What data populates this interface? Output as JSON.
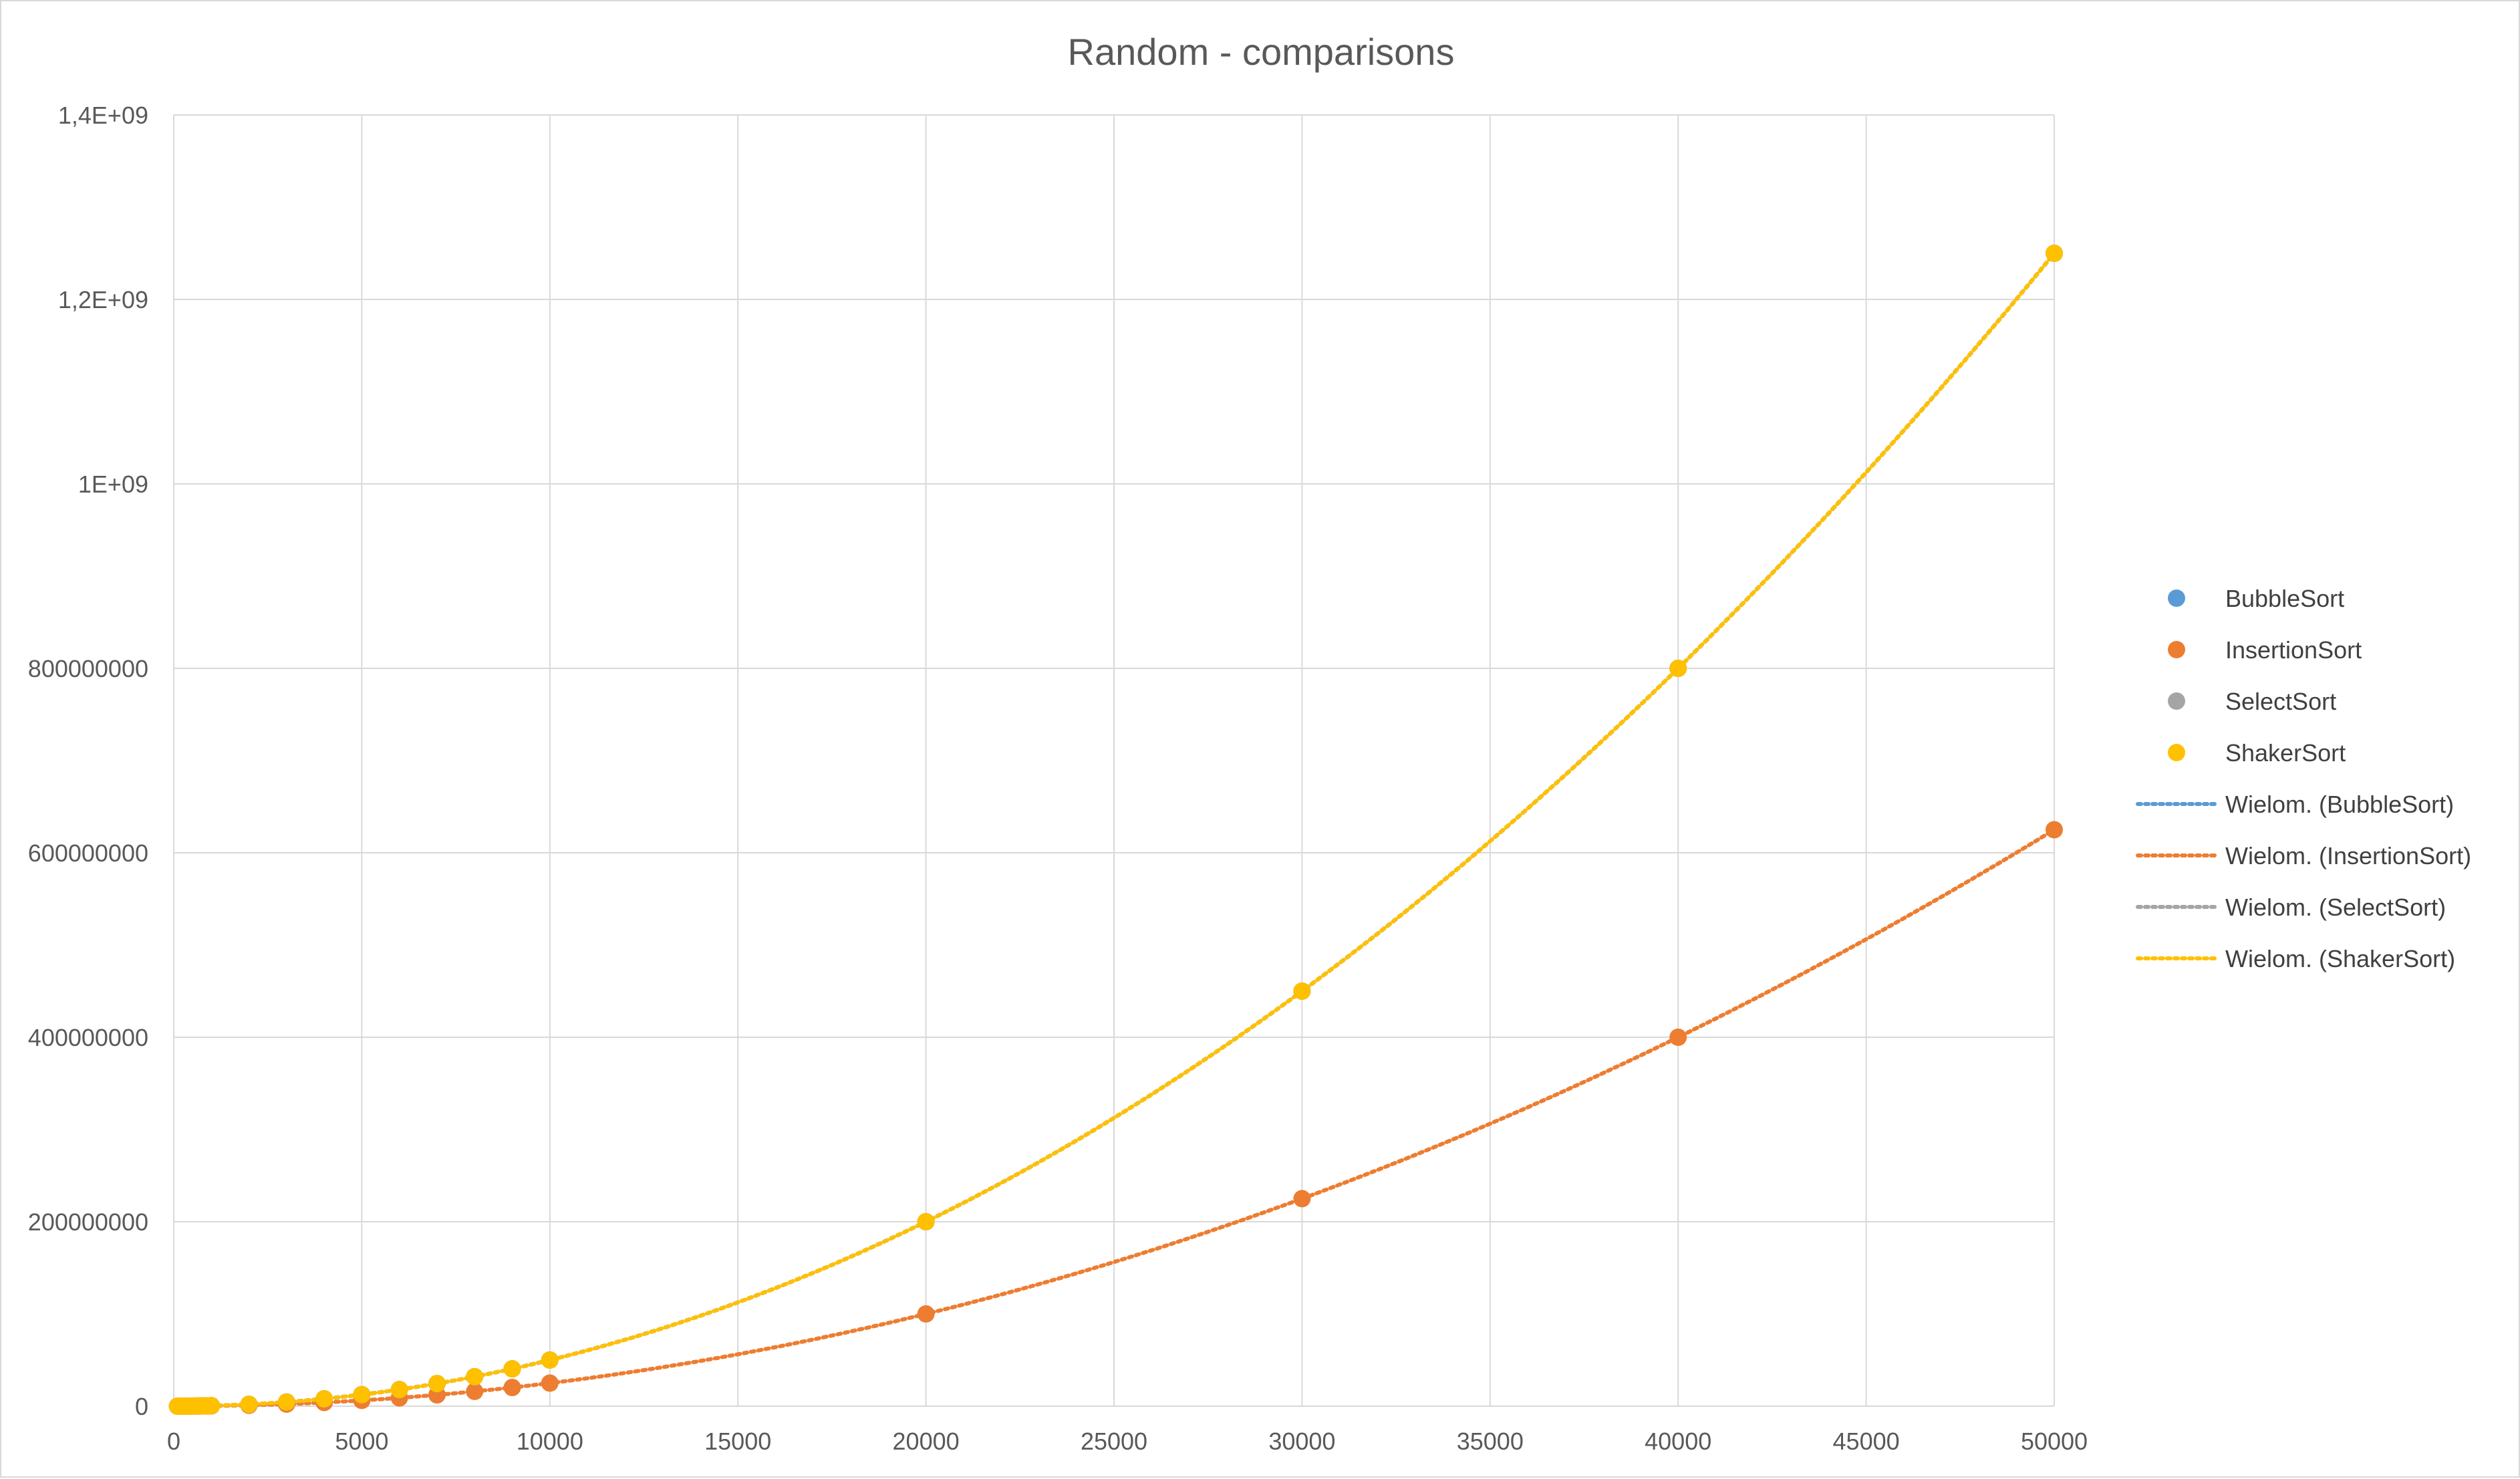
{
  "chart_data": {
    "type": "scatter",
    "title": "Random - comparisons",
    "xlabel": "",
    "ylabel": "",
    "xlim": [
      0,
      50000
    ],
    "ylim": [
      0,
      1400000000
    ],
    "x_ticks": [
      0,
      5000,
      10000,
      15000,
      20000,
      25000,
      30000,
      35000,
      40000,
      45000,
      50000
    ],
    "x_tick_labels": [
      "0",
      "5000",
      "10000",
      "15000",
      "20000",
      "25000",
      "30000",
      "35000",
      "40000",
      "45000",
      "50000"
    ],
    "y_ticks": [
      0,
      200000000,
      400000000,
      600000000,
      800000000,
      1000000000,
      1200000000,
      1400000000
    ],
    "y_tick_labels": [
      "0",
      "200000000",
      "400000000",
      "600000000",
      "800000000",
      "1E+09",
      "1,2E+09",
      "1,4E+09"
    ],
    "grid": true,
    "legend_position": "right",
    "x": [
      100,
      200,
      300,
      400,
      500,
      600,
      700,
      800,
      900,
      1000,
      2000,
      3000,
      4000,
      5000,
      6000,
      7000,
      8000,
      9000,
      10000,
      20000,
      30000,
      40000,
      50000
    ],
    "series": [
      {
        "name": "BubbleSort",
        "color": "#5b9bd5",
        "values": [
          5000,
          20000,
          45000,
          80000,
          125000,
          180000,
          245000,
          320000,
          405000,
          500000,
          2000000,
          4500000,
          8000000,
          12500000,
          18000000,
          24500000,
          32000000,
          40500000,
          50000000,
          200000000,
          450000000,
          800000000,
          1250000000
        ]
      },
      {
        "name": "InsertionSort",
        "color": "#ed7d31",
        "values": [
          2500,
          10000,
          22500,
          40000,
          62500,
          90000,
          122500,
          160000,
          202500,
          250000,
          1000000,
          2250000,
          4000000,
          6250000,
          9000000,
          12250000,
          16000000,
          20250000,
          25000000,
          100000000,
          225000000,
          400000000,
          625000000
        ]
      },
      {
        "name": "SelectSort",
        "color": "#a5a5a5",
        "values": [
          5000,
          20000,
          45000,
          80000,
          125000,
          180000,
          245000,
          320000,
          405000,
          500000,
          2000000,
          4500000,
          8000000,
          12500000,
          18000000,
          24500000,
          32000000,
          40500000,
          50000000,
          200000000,
          450000000,
          800000000,
          1250000000
        ]
      },
      {
        "name": "ShakerSort",
        "color": "#ffc000",
        "values": [
          5000,
          20000,
          45000,
          80000,
          125000,
          180000,
          245000,
          320000,
          405000,
          500000,
          2000000,
          4500000,
          8000000,
          12500000,
          18000000,
          24500000,
          32000000,
          40500000,
          50000000,
          200000000,
          450000000,
          800000000,
          1250000000
        ]
      }
    ],
    "trendlines": [
      {
        "name": "Wielom. (BubbleSort)",
        "color": "#5b9bd5",
        "fit": "polynomial"
      },
      {
        "name": "Wielom. (InsertionSort)",
        "color": "#ed7d31",
        "fit": "polynomial"
      },
      {
        "name": "Wielom. (SelectSort)",
        "color": "#a5a5a5",
        "fit": "polynomial"
      },
      {
        "name": "Wielom. (ShakerSort)",
        "color": "#ffc000",
        "fit": "polynomial"
      }
    ]
  }
}
